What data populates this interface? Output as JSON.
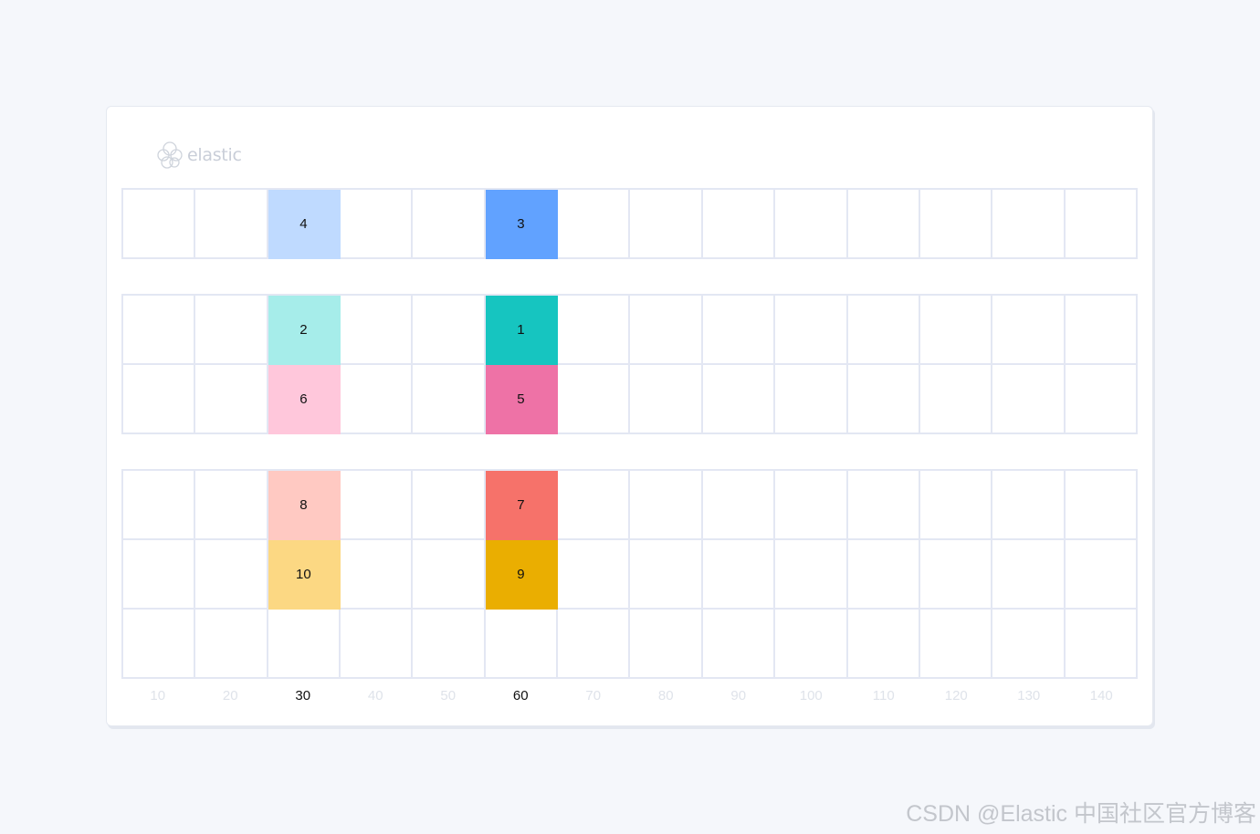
{
  "logo": {
    "text": "elastic",
    "icon": "elastic-cluster-logo"
  },
  "groups": [
    {
      "rows": [
        {
          "cells": [
            {
              "col": 30,
              "label": "4",
              "color": "#bfdaff"
            },
            {
              "col": 60,
              "label": "3",
              "color": "#61a2ff"
            }
          ]
        }
      ]
    },
    {
      "rows": [
        {
          "cells": [
            {
              "col": 30,
              "label": "2",
              "color": "#a6edea"
            },
            {
              "col": 60,
              "label": "1",
              "color": "#16c5c0"
            }
          ]
        },
        {
          "cells": [
            {
              "col": 30,
              "label": "6",
              "color": "#ffc7db"
            },
            {
              "col": 60,
              "label": "5",
              "color": "#ee72a6"
            }
          ]
        }
      ]
    },
    {
      "rows": [
        {
          "cells": [
            {
              "col": 30,
              "label": "8",
              "color": "#ffc9c2"
            },
            {
              "col": 60,
              "label": "7",
              "color": "#f6726a"
            }
          ]
        },
        {
          "cells": [
            {
              "col": 30,
              "label": "10",
              "color": "#fcd883"
            },
            {
              "col": 60,
              "label": "9",
              "color": "#eaae01"
            }
          ]
        },
        {
          "cells": []
        }
      ]
    }
  ],
  "x_axis": {
    "ticks": [
      "10",
      "20",
      "30",
      "40",
      "50",
      "60",
      "70",
      "80",
      "90",
      "100",
      "110",
      "120",
      "130",
      "140"
    ],
    "highlighted": [
      "30",
      "60"
    ]
  },
  "watermark": "CSDN @Elastic 中国社区官方博客"
}
